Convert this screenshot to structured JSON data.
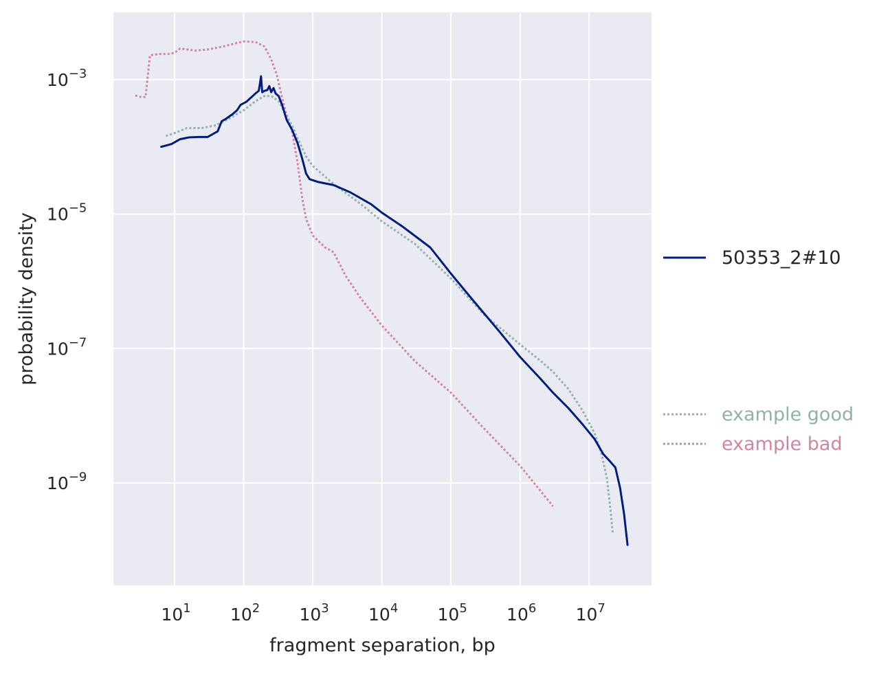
{
  "chart_data": {
    "type": "line",
    "title": "",
    "xlabel": "fragment separation, bp",
    "ylabel": "probability density",
    "xscale": "log",
    "yscale": "log",
    "xlim": [
      1.3,
      80000000
    ],
    "ylim": [
      3e-11,
      0.01
    ],
    "grid": true,
    "x_ticks": [
      {
        "value": 10,
        "base": "10",
        "exp": "1"
      },
      {
        "value": 100,
        "base": "10",
        "exp": "2"
      },
      {
        "value": 1000,
        "base": "10",
        "exp": "3"
      },
      {
        "value": 10000,
        "base": "10",
        "exp": "4"
      },
      {
        "value": 100000,
        "base": "10",
        "exp": "5"
      },
      {
        "value": 1000000,
        "base": "10",
        "exp": "6"
      },
      {
        "value": 10000000,
        "base": "10",
        "exp": "7"
      }
    ],
    "y_ticks": [
      {
        "value": 0.001,
        "base": "10",
        "exp": "−3"
      },
      {
        "value": 1e-05,
        "base": "10",
        "exp": "−5"
      },
      {
        "value": 1e-07,
        "base": "10",
        "exp": "−7"
      },
      {
        "value": 1e-09,
        "base": "10",
        "exp": "−9"
      }
    ],
    "legend": {
      "placement": "right",
      "entries": [
        {
          "label": "50353_2#10",
          "color": "#001c7f",
          "style": "solid"
        },
        {
          "label": "example good",
          "color": "#8fb2ad",
          "style": "dotted"
        },
        {
          "label": "example bad",
          "color": "#d184a3",
          "style": "dotted"
        }
      ]
    },
    "series": [
      {
        "name": "50353_2#10",
        "color": "#001c7f",
        "style": "solid",
        "points": [
          [
            6.4,
            0.0001
          ],
          [
            9,
            0.00011
          ],
          [
            12,
            0.00013
          ],
          [
            16,
            0.000138
          ],
          [
            22,
            0.00014
          ],
          [
            30,
            0.00014
          ],
          [
            42,
            0.00017
          ],
          [
            48,
            0.00024
          ],
          [
            55,
            0.00026
          ],
          [
            70,
            0.00031
          ],
          [
            80,
            0.00035
          ],
          [
            90,
            0.00042
          ],
          [
            110,
            0.00047
          ],
          [
            130,
            0.00055
          ],
          [
            150,
            0.00063
          ],
          [
            165,
            0.00068
          ],
          [
            172,
            0.00088
          ],
          [
            178,
            0.00112
          ],
          [
            185,
            0.00065
          ],
          [
            200,
            0.00068
          ],
          [
            220,
            0.0007
          ],
          [
            235,
            0.0008
          ],
          [
            250,
            0.00065
          ],
          [
            270,
            0.00075
          ],
          [
            290,
            0.00062
          ],
          [
            320,
            0.00057
          ],
          [
            360,
            0.00042
          ],
          [
            420,
            0.00025
          ],
          [
            500,
            0.00018
          ],
          [
            600,
            0.000115
          ],
          [
            700,
            6.8e-05
          ],
          [
            800,
            4e-05
          ],
          [
            900,
            3.3e-05
          ],
          [
            1200,
            3e-05
          ],
          [
            2000,
            2.7e-05
          ],
          [
            3500,
            2.1e-05
          ],
          [
            7000,
            1.4e-05
          ],
          [
            10000,
            1.05e-05
          ],
          [
            20000,
            6.5e-06
          ],
          [
            50000,
            3.2e-06
          ],
          [
            100000,
            1.3e-06
          ],
          [
            200000,
            5.5e-07
          ],
          [
            500000,
            1.8e-07
          ],
          [
            1000000,
            7.5e-08
          ],
          [
            2000000,
            3.5e-08
          ],
          [
            3000000,
            2.2e-08
          ],
          [
            5000000,
            1.3e-08
          ],
          [
            8000000,
            7.5e-09
          ],
          [
            12000000,
            4.5e-09
          ],
          [
            16000000,
            2.7e-09
          ],
          [
            20000000,
            2.1e-09
          ],
          [
            24000000,
            1.7e-09
          ],
          [
            28000000,
            8.5e-10
          ],
          [
            32000000,
            3.5e-10
          ],
          [
            36000000,
            1.2e-10
          ]
        ]
      },
      {
        "name": "example good",
        "color": "#8fb2ad",
        "style": "dotted",
        "points": [
          [
            7.5,
            0.000145
          ],
          [
            10,
            0.00016
          ],
          [
            15,
            0.00019
          ],
          [
            25,
            0.00019
          ],
          [
            40,
            0.00021
          ],
          [
            60,
            0.00026
          ],
          [
            100,
            0.00035
          ],
          [
            150,
            0.00048
          ],
          [
            200,
            0.00057
          ],
          [
            250,
            0.00057
          ],
          [
            320,
            0.00048
          ],
          [
            400,
            0.00031
          ],
          [
            500,
            0.00021
          ],
          [
            600,
            0.000135
          ],
          [
            800,
            7.2e-05
          ],
          [
            1000,
            5.2e-05
          ],
          [
            2000,
            2.8e-05
          ],
          [
            5000,
            1.4e-05
          ],
          [
            10000,
            7.8e-06
          ],
          [
            30000,
            3.6e-06
          ],
          [
            100000,
            1.1e-06
          ],
          [
            300000,
            3.2e-07
          ],
          [
            1000000,
            1.15e-07
          ],
          [
            2000000,
            6.5e-08
          ],
          [
            3000000,
            4.5e-08
          ],
          [
            5000000,
            2.5e-08
          ],
          [
            8000000,
            1.2e-08
          ],
          [
            12000000,
            5.5e-09
          ],
          [
            15000000,
            2.8e-09
          ],
          [
            18000000,
            1.2e-09
          ],
          [
            20000000,
            4.8e-10
          ],
          [
            22000000,
            1.8e-10
          ]
        ]
      },
      {
        "name": "example bad",
        "color": "#d184a3",
        "style": "dotted",
        "points": [
          [
            2.7,
            0.00058
          ],
          [
            3.3,
            0.00055
          ],
          [
            3.8,
            0.00055
          ],
          [
            4.4,
            0.0023
          ],
          [
            6,
            0.0024
          ],
          [
            8,
            0.0024
          ],
          [
            10,
            0.0025
          ],
          [
            12,
            0.0029
          ],
          [
            20,
            0.0027
          ],
          [
            30,
            0.0028
          ],
          [
            50,
            0.0031
          ],
          [
            80,
            0.0035
          ],
          [
            100,
            0.0037
          ],
          [
            150,
            0.0036
          ],
          [
            200,
            0.0031
          ],
          [
            250,
            0.002
          ],
          [
            300,
            0.0012
          ],
          [
            350,
            0.0006
          ],
          [
            400,
            0.00035
          ],
          [
            500,
            0.00017
          ],
          [
            600,
            6e-05
          ],
          [
            700,
            1.8e-05
          ],
          [
            800,
            8.5e-06
          ],
          [
            1000,
            4.8e-06
          ],
          [
            1500,
            3.2e-06
          ],
          [
            2000,
            2.7e-06
          ],
          [
            3000,
            1.2e-06
          ],
          [
            5000,
            5.5e-07
          ],
          [
            10000,
            2.2e-07
          ],
          [
            30000,
            6.5e-08
          ],
          [
            100000,
            2.2e-08
          ],
          [
            300000,
            6.5e-09
          ],
          [
            1000000,
            1.8e-09
          ],
          [
            3000000,
            4.5e-10
          ]
        ]
      }
    ]
  }
}
